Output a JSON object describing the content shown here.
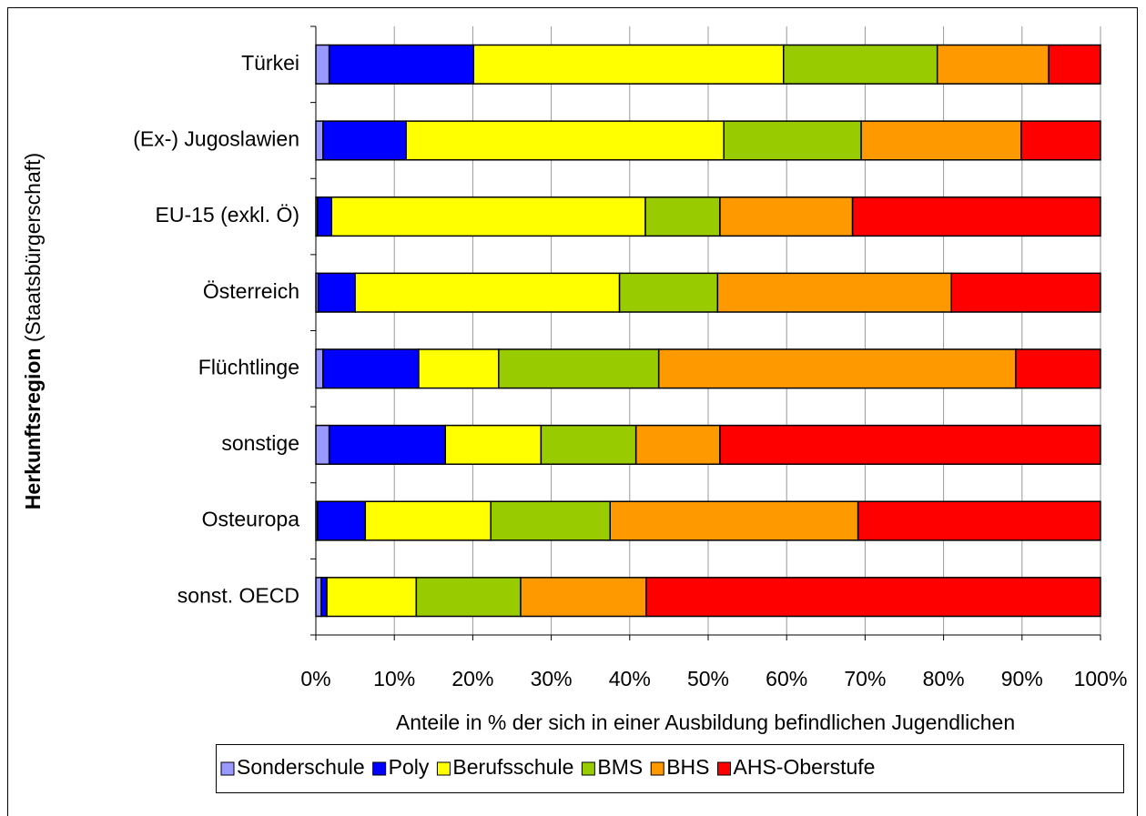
{
  "chart_data": {
    "type": "stacked_bar_horizontal",
    "y_label_bold": "Herkunftsregion",
    "y_label": "(Staatsbürgerschaft)",
    "x_label": "Anteile in % der sich in einer Ausbildung befindlichen Jugendlichen",
    "categories": [
      "Türkei",
      "(Ex-) Jugoslawien",
      "EU-15 (exkl. Ö)",
      "Österreich",
      "Flüchtlinge",
      "sonstige",
      "Osteuropa",
      "sonst. OECD"
    ],
    "series": [
      {
        "name": "Sonderschule",
        "color": "#9999ff",
        "values": [
          1.7,
          0.9,
          0.2,
          0.3,
          0.9,
          1.7,
          0.2,
          0.7
        ]
      },
      {
        "name": "Poly",
        "color": "#0000ff",
        "values": [
          18.4,
          10.6,
          1.8,
          4.7,
          12.2,
          14.8,
          6.1,
          0.7
        ]
      },
      {
        "name": "Berufsschule",
        "color": "#ffff00",
        "values": [
          39.5,
          40.5,
          40.0,
          33.7,
          10.2,
          12.2,
          16.0,
          11.4
        ]
      },
      {
        "name": "BMS",
        "color": "#99cc00",
        "values": [
          19.6,
          17.5,
          9.5,
          12.5,
          20.4,
          12.1,
          15.2,
          13.3
        ]
      },
      {
        "name": "BHS",
        "color": "#ff9900",
        "values": [
          14.2,
          20.4,
          16.9,
          29.8,
          45.5,
          10.7,
          31.6,
          16.0
        ]
      },
      {
        "name": "AHS-Oberstufe",
        "color": "#ff0000",
        "values": [
          6.6,
          10.1,
          31.6,
          19.0,
          10.8,
          48.5,
          30.9,
          57.9
        ]
      }
    ],
    "xlim": [
      0,
      100
    ],
    "xticks": [
      {
        "value": 0,
        "label": "0%"
      },
      {
        "value": 10,
        "label": "10%"
      },
      {
        "value": 20,
        "label": "20%"
      },
      {
        "value": 30,
        "label": "30%"
      },
      {
        "value": 40,
        "label": "40%"
      },
      {
        "value": 50,
        "label": "50%"
      },
      {
        "value": 60,
        "label": "60%"
      },
      {
        "value": 70,
        "label": "70%"
      },
      {
        "value": 80,
        "label": "80%"
      },
      {
        "value": 90,
        "label": "90%"
      },
      {
        "value": 100,
        "label": "100%"
      }
    ],
    "grid": true,
    "legend": "bottom"
  }
}
